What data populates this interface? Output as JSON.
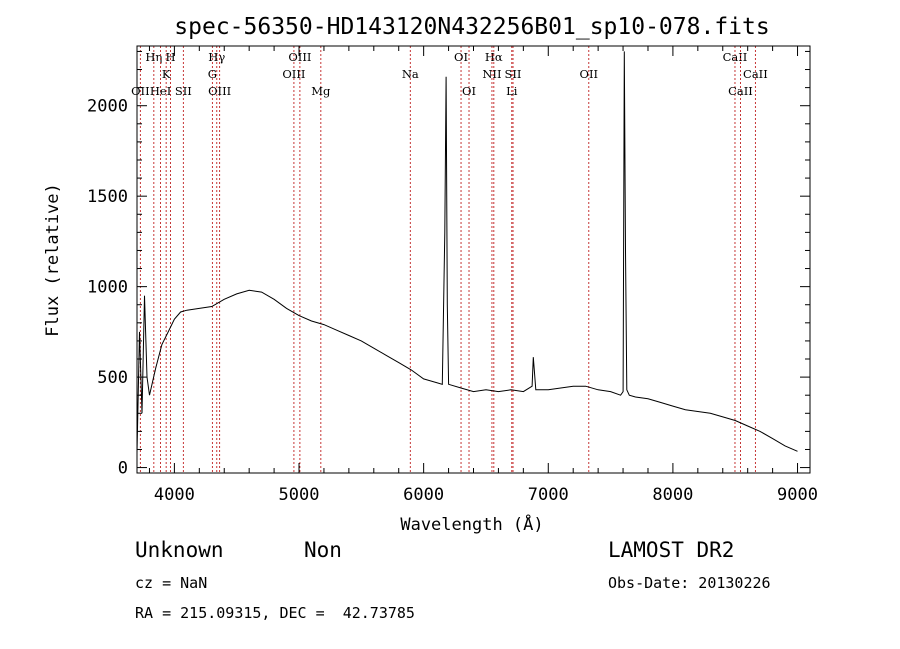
{
  "chart_data": {
    "type": "line",
    "title": "spec-56350-HD143120N432256B01_sp10-078.fits",
    "xlabel": "Wavelength (Å)",
    "ylabel": "Flux (relative)",
    "xlim": [
      3700,
      9100
    ],
    "ylim": [
      -30,
      2330
    ],
    "xticks": [
      4000,
      5000,
      6000,
      7000,
      8000,
      9000
    ],
    "yticks": [
      0,
      500,
      1000,
      1500,
      2000
    ],
    "grid": false,
    "series": [
      {
        "x": [
          3700,
          3720,
          3740,
          3760,
          3780,
          3800,
          3850,
          3900,
          3950,
          4000,
          4050,
          4100,
          4200,
          4300,
          4400,
          4500,
          4600,
          4700,
          4800,
          4900,
          5000,
          5100,
          5200,
          5300,
          5400,
          5500,
          5600,
          5700,
          5800,
          5900,
          6000,
          6100,
          6150,
          6170,
          6180,
          6190,
          6200,
          6300,
          6400,
          6500,
          6600,
          6700,
          6800,
          6870,
          6880,
          6900,
          7000,
          7100,
          7200,
          7300,
          7400,
          7500,
          7580,
          7600,
          7610,
          7620,
          7630,
          7650,
          7700,
          7800,
          7900,
          8000,
          8100,
          8200,
          8300,
          8400,
          8500,
          8600,
          8700,
          8800,
          8900,
          9000
        ],
        "y": [
          80,
          750,
          300,
          950,
          500,
          400,
          550,
          680,
          750,
          820,
          860,
          870,
          880,
          890,
          930,
          960,
          980,
          970,
          930,
          880,
          840,
          810,
          790,
          760,
          730,
          700,
          660,
          620,
          580,
          540,
          490,
          470,
          460,
          1300,
          2160,
          900,
          460,
          440,
          420,
          430,
          420,
          430,
          420,
          450,
          610,
          430,
          430,
          440,
          450,
          450,
          430,
          420,
          400,
          420,
          2300,
          1200,
          430,
          400,
          390,
          380,
          360,
          340,
          320,
          310,
          300,
          280,
          260,
          230,
          200,
          160,
          120,
          90
        ]
      }
    ],
    "spectral_lines": [
      {
        "label": "OII",
        "x": 3727,
        "row": 3
      },
      {
        "label": "Hη",
        "x": 3835,
        "row": 1
      },
      {
        "label": "HeI",
        "x": 3889,
        "row": 3
      },
      {
        "label": "K",
        "x": 3934,
        "row": 2
      },
      {
        "label": "H",
        "x": 3969,
        "row": 1
      },
      {
        "label": "SII",
        "x": 4072,
        "row": 3
      },
      {
        "label": "Hγ",
        "x": 4340,
        "row": 1
      },
      {
        "label": "G",
        "x": 4305,
        "row": 2
      },
      {
        "label": "OIII",
        "x": 4363,
        "row": 3
      },
      {
        "label": "OIII",
        "x": 4959,
        "row": 2
      },
      {
        "label": "OIII",
        "x": 5007,
        "row": 1
      },
      {
        "label": "Mg",
        "x": 5175,
        "row": 3
      },
      {
        "label": "Na",
        "x": 5893,
        "row": 2
      },
      {
        "label": "OI",
        "x": 6300,
        "row": 1
      },
      {
        "label": "OI",
        "x": 6364,
        "row": 3
      },
      {
        "label": "Hα",
        "x": 6563,
        "row": 1
      },
      {
        "label": "NII",
        "x": 6548,
        "row": 2
      },
      {
        "label": "SII",
        "x": 6717,
        "row": 2
      },
      {
        "label": "Li",
        "x": 6707,
        "row": 3
      },
      {
        "label": "OII",
        "x": 7325,
        "row": 2
      },
      {
        "label": "CaII",
        "x": 8498,
        "row": 1
      },
      {
        "label": "CaII",
        "x": 8542,
        "row": 3
      },
      {
        "label": "CaII",
        "x": 8662,
        "row": 2
      }
    ]
  },
  "info": {
    "class_text": "Unknown",
    "subclass_text": "Non",
    "survey": "LAMOST DR2",
    "cz": "cz = NaN",
    "obs_date": "Obs-Date: 20130226",
    "coords": "RA = 215.09315, DEC =  42.73785"
  }
}
